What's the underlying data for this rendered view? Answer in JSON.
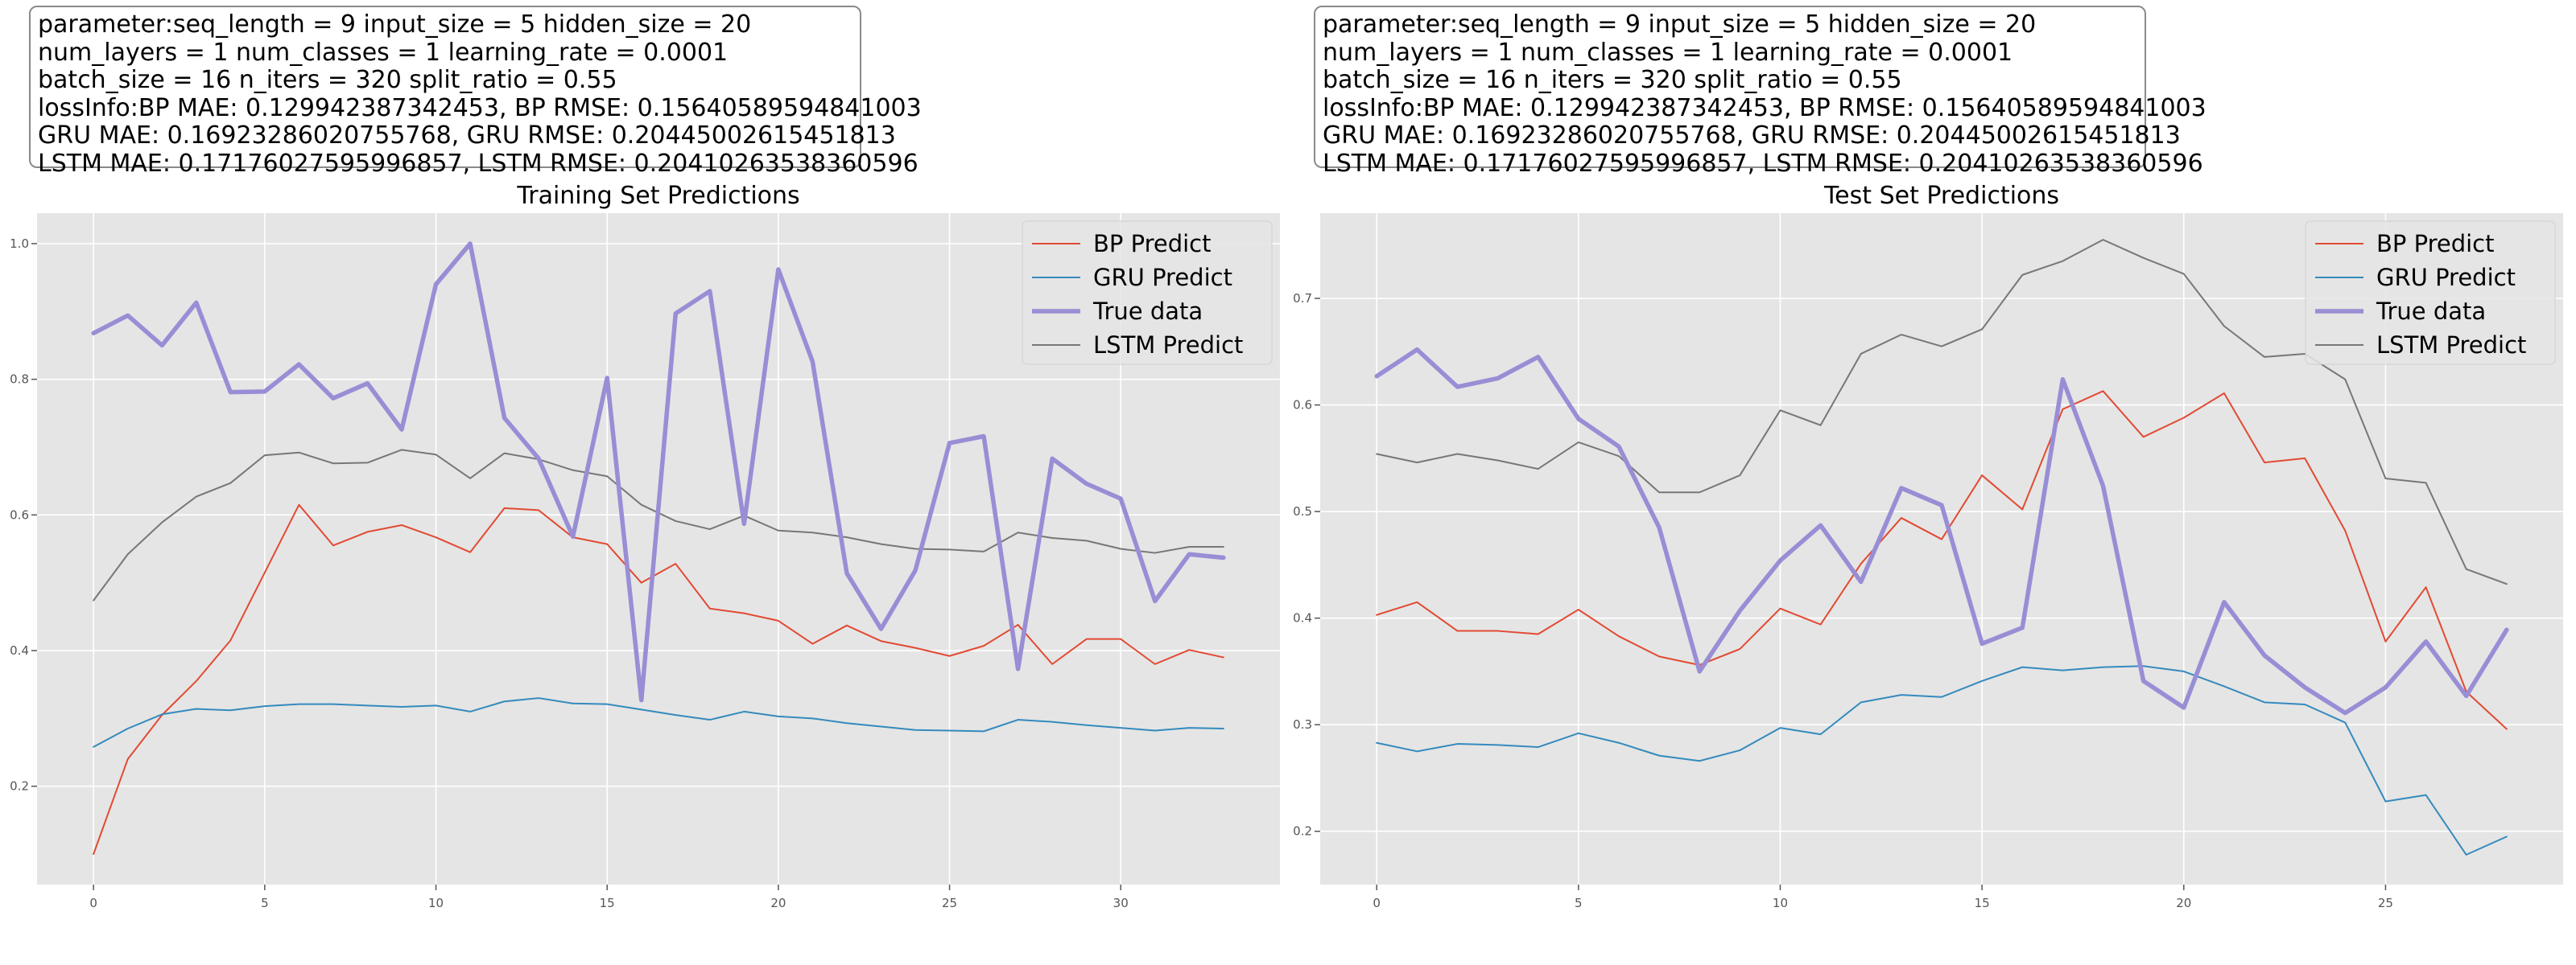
{
  "info_box": {
    "line1": "parameter:seq_length = 9 input_size = 5 hidden_size = 20",
    "line2": "num_layers = 1 num_classes = 1 learning_rate = 0.0001",
    "line3": "batch_size = 16 n_iters = 320 split_ratio = 0.55",
    "line4": "lossInfo:BP MAE: 0.129942387342453, BP RMSE: 0.15640589594841003",
    "line5": "GRU MAE: 0.16923286020755768, GRU RMSE: 0.20445002615451813",
    "line6": "LSTM MAE: 0.17176027595996857, LSTM RMSE: 0.20410263538360596"
  },
  "colors": {
    "bp": "#e24a33",
    "gru": "#348abd",
    "true": "#988ed5",
    "lstm": "#777777",
    "plot_bg": "#e5e5e5",
    "grid": "#ffffff"
  },
  "chart_data": [
    {
      "type": "line",
      "title": "Training Set Predictions",
      "xlabel": "",
      "ylabel": "",
      "xlim": [
        -1.65,
        34.65
      ],
      "ylim": [
        0.055,
        1.045
      ],
      "xticks": [
        0,
        5,
        10,
        15,
        20,
        25,
        30
      ],
      "yticks": [
        0.2,
        0.4,
        0.6,
        0.8,
        1.0
      ],
      "ytick_labels": [
        "0.2",
        "0.4",
        "0.6",
        "0.8",
        "1.0"
      ],
      "legend_position": "top-right",
      "series": [
        {
          "key": "bp",
          "name": "BP Predict",
          "values": [
            0.1,
            0.24,
            0.305,
            0.355,
            0.415,
            0.515,
            0.615,
            0.555,
            0.575,
            0.585,
            0.567,
            0.545,
            0.61,
            0.607,
            0.567,
            0.557,
            0.5,
            0.528,
            0.462,
            0.455,
            0.444,
            0.41,
            0.437,
            0.414,
            0.404,
            0.392,
            0.407,
            0.438,
            0.38,
            0.417,
            0.417,
            0.38,
            0.401,
            0.39
          ]
        },
        {
          "key": "gru",
          "name": "GRU Predict",
          "values": [
            0.258,
            0.285,
            0.306,
            0.314,
            0.312,
            0.318,
            0.321,
            0.321,
            0.319,
            0.317,
            0.319,
            0.31,
            0.325,
            0.33,
            0.322,
            0.321,
            0.313,
            0.305,
            0.298,
            0.31,
            0.303,
            0.3,
            0.293,
            0.288,
            0.283,
            0.282,
            0.281,
            0.298,
            0.295,
            0.29,
            0.286,
            0.282,
            0.286,
            0.285
          ]
        },
        {
          "key": "true",
          "name": "True data",
          "values": [
            0.868,
            0.894,
            0.85,
            0.913,
            0.781,
            0.782,
            0.822,
            0.772,
            0.794,
            0.726,
            0.94,
            1.0,
            0.743,
            0.683,
            0.568,
            0.802,
            0.327,
            0.897,
            0.93,
            0.587,
            0.962,
            0.826,
            0.514,
            0.432,
            0.518,
            0.706,
            0.716,
            0.373,
            0.683,
            0.646,
            0.624,
            0.473,
            0.542,
            0.537
          ]
        },
        {
          "key": "lstm",
          "name": "LSTM Predict",
          "values": [
            0.474,
            0.542,
            0.589,
            0.627,
            0.647,
            0.688,
            0.692,
            0.676,
            0.677,
            0.696,
            0.689,
            0.654,
            0.691,
            0.682,
            0.666,
            0.657,
            0.615,
            0.591,
            0.579,
            0.599,
            0.577,
            0.574,
            0.567,
            0.557,
            0.55,
            0.549,
            0.546,
            0.574,
            0.566,
            0.562,
            0.55,
            0.544,
            0.553,
            0.553
          ]
        }
      ]
    },
    {
      "type": "line",
      "title": "Test Set Predictions",
      "xlabel": "",
      "ylabel": "",
      "xlim": [
        -1.4,
        29.4
      ],
      "ylim": [
        0.15,
        0.78
      ],
      "xticks": [
        0,
        5,
        10,
        15,
        20,
        25
      ],
      "yticks": [
        0.2,
        0.3,
        0.4,
        0.5,
        0.6,
        0.7
      ],
      "ytick_labels": [
        "0.2",
        "0.3",
        "0.4",
        "0.5",
        "0.6",
        "0.7"
      ],
      "legend_position": "top-right",
      "series": [
        {
          "key": "bp",
          "name": "BP Predict",
          "values": [
            0.403,
            0.415,
            0.388,
            0.388,
            0.385,
            0.408,
            0.383,
            0.364,
            0.356,
            0.371,
            0.409,
            0.394,
            0.451,
            0.494,
            0.474,
            0.534,
            0.502,
            0.596,
            0.613,
            0.57,
            0.588,
            0.611,
            0.546,
            0.55,
            0.482,
            0.378,
            0.429,
            0.331,
            0.296
          ]
        },
        {
          "key": "gru",
          "name": "GRU Predict",
          "values": [
            0.283,
            0.275,
            0.282,
            0.281,
            0.279,
            0.292,
            0.283,
            0.271,
            0.266,
            0.276,
            0.297,
            0.291,
            0.321,
            0.328,
            0.326,
            0.341,
            0.354,
            0.351,
            0.354,
            0.355,
            0.35,
            0.336,
            0.321,
            0.319,
            0.302,
            0.228,
            0.234,
            0.178,
            0.195
          ]
        },
        {
          "key": "true",
          "name": "True data",
          "values": [
            0.627,
            0.652,
            0.617,
            0.625,
            0.645,
            0.587,
            0.561,
            0.485,
            0.35,
            0.407,
            0.454,
            0.487,
            0.434,
            0.522,
            0.506,
            0.376,
            0.391,
            0.624,
            0.524,
            0.341,
            0.316,
            0.415,
            0.365,
            0.335,
            0.311,
            0.335,
            0.378,
            0.327,
            0.389
          ]
        },
        {
          "key": "lstm",
          "name": "LSTM Predict",
          "values": [
            0.554,
            0.546,
            0.554,
            0.548,
            0.54,
            0.565,
            0.552,
            0.518,
            0.518,
            0.534,
            0.595,
            0.581,
            0.648,
            0.666,
            0.655,
            0.671,
            0.722,
            0.735,
            0.755,
            0.738,
            0.723,
            0.674,
            0.645,
            0.648,
            0.624,
            0.531,
            0.527,
            0.446,
            0.432
          ]
        }
      ]
    }
  ]
}
